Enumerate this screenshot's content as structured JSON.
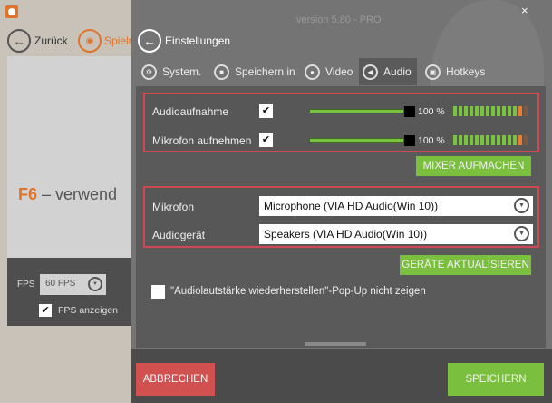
{
  "left": {
    "back_label": "Zurück",
    "game_label": "Spielr",
    "hint_key": "F6",
    "hint_text": " – verwend",
    "fps_label": "FPS",
    "fps_value": "60 FPS",
    "fps_show_label": "FPS anzeigen",
    "fps_show_checked": true
  },
  "header": {
    "version": "version 5.80 - PRO",
    "title": "Einstellungen"
  },
  "tabs": [
    {
      "label": "System.",
      "icon": "gears-icon"
    },
    {
      "label": "Speichern in",
      "icon": "folder-icon"
    },
    {
      "label": "Video",
      "icon": "record-icon"
    },
    {
      "label": "Audio",
      "icon": "speaker-icon",
      "active": true
    },
    {
      "label": "Hotkeys",
      "icon": "keyboard-icon"
    }
  ],
  "audio": {
    "rows": [
      {
        "label": "Audioaufnahme",
        "checked": true,
        "volume_percent": 100,
        "volume_text": "100 %"
      },
      {
        "label": "Mikrofon aufnehmen",
        "checked": true,
        "volume_percent": 100,
        "volume_text": "100 %"
      }
    ],
    "mixer_button": "MIXER AUFMACHEN",
    "mic_label": "Mikrofon",
    "mic_value": "Microphone (VIA HD Audio(Win 10))",
    "device_label": "Audiogerät",
    "device_value": "Speakers (VIA HD Audio(Win 10))",
    "refresh_button": "GERÄTE AKTUALISIEREN",
    "popup_label": "\"Audiolautstärke wiederherstellen\"-Pop-Up nicht zeigen",
    "popup_checked": false
  },
  "footer": {
    "cancel": "ABBRECHEN",
    "save": "SPEICHERN"
  },
  "colors": {
    "accent_green": "#7bbf3f",
    "cancel_red": "#d15050",
    "brand_orange": "#e0742a",
    "highlight_border": "#d04850"
  }
}
